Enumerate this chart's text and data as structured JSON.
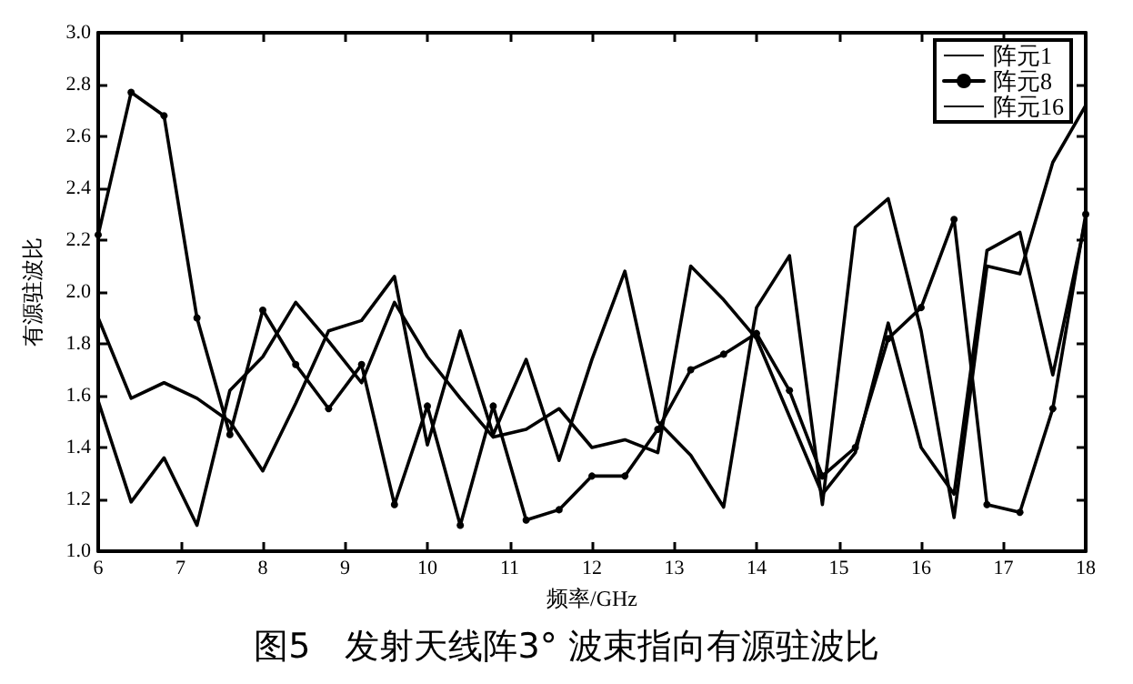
{
  "chart_data": {
    "type": "line",
    "title": "图5　发射天线阵3° 波束指向有源驻波比",
    "xlabel": "频率/GHz",
    "ylabel": "有源驻波比",
    "x": [
      6,
      6.4,
      6.8,
      7.2,
      7.6,
      8,
      8.4,
      8.8,
      9.2,
      9.6,
      10,
      10.4,
      10.8,
      11.2,
      11.6,
      12,
      12.4,
      12.8,
      13.2,
      13.6,
      14,
      14.4,
      14.8,
      15.2,
      15.6,
      16,
      16.4,
      16.8,
      17.2,
      17.6,
      18
    ],
    "series": [
      {
        "name": "阵元1",
        "color": "#000000",
        "marker": "none",
        "values": [
          1.9,
          1.59,
          1.65,
          1.59,
          1.5,
          1.31,
          1.57,
          1.85,
          1.89,
          2.06,
          1.41,
          1.85,
          1.45,
          1.74,
          1.35,
          1.74,
          2.08,
          1.5,
          1.37,
          1.17,
          1.94,
          2.14,
          1.18,
          2.25,
          2.36,
          1.85,
          1.13,
          2.1,
          2.07,
          2.5,
          2.72
        ]
      },
      {
        "name": "阵元8",
        "color": "#000000",
        "marker": "circle",
        "values": [
          2.22,
          2.77,
          2.68,
          1.9,
          1.45,
          1.93,
          1.72,
          1.55,
          1.72,
          1.18,
          1.56,
          1.1,
          1.56,
          1.12,
          1.16,
          1.29,
          1.29,
          1.47,
          1.7,
          1.76,
          1.84,
          1.62,
          1.29,
          1.4,
          1.82,
          1.94,
          2.28,
          1.18,
          1.15,
          1.55,
          2.3
        ]
      },
      {
        "name": "阵元16",
        "color": "#000000",
        "marker": "none",
        "values": [
          1.58,
          1.19,
          1.36,
          1.1,
          1.62,
          1.75,
          1.96,
          1.81,
          1.65,
          1.96,
          1.75,
          1.59,
          1.44,
          1.47,
          1.55,
          1.4,
          1.43,
          1.38,
          2.1,
          1.97,
          1.82,
          1.52,
          1.22,
          1.38,
          1.88,
          1.4,
          1.22,
          2.16,
          2.23,
          1.68,
          2.28
        ]
      }
    ],
    "xlim": [
      6,
      18
    ],
    "xticks": [
      6,
      7,
      8,
      9,
      10,
      11,
      12,
      13,
      14,
      15,
      16,
      17,
      18
    ],
    "ylim": [
      1,
      3
    ],
    "yticks": [
      {
        "value": 1,
        "label": "1.0"
      },
      {
        "value": 1.2,
        "label": "1.2"
      },
      {
        "value": 1.4,
        "label": "1.4"
      },
      {
        "value": 1.6,
        "label": "1.6"
      },
      {
        "value": 1.8,
        "label": "1.8"
      },
      {
        "value": 2,
        "label": "2.0"
      },
      {
        "value": 2.2,
        "label": "2.2"
      },
      {
        "value": 2.4,
        "label": "2.4"
      },
      {
        "value": 2.6,
        "label": "2.6"
      },
      {
        "value": 2.8,
        "label": "2.8"
      },
      {
        "value": 3,
        "label": "3.0"
      }
    ],
    "grid": false,
    "legend": "top right",
    "line_style": "solid"
  }
}
